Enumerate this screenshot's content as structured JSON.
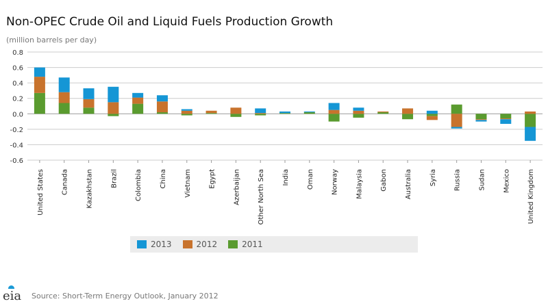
{
  "chart_data": {
    "type": "bar",
    "stacked": true,
    "title": "Non-OPEC Crude Oil and Liquid Fuels Production Growth",
    "subtitle": "(million barrels per day)",
    "ylim": [
      -0.6,
      0.8
    ],
    "yticks": [
      "0.8",
      "0.6",
      "0.4",
      "0.2",
      "0.0",
      "-0.2",
      "-0.4",
      "-0.6"
    ],
    "ytick_values": [
      0.8,
      0.6,
      0.4,
      0.2,
      0.0,
      -0.2,
      -0.4,
      -0.6
    ],
    "grid": true,
    "legend_position": "bottom",
    "categories": [
      "United States",
      "Canada",
      "Kazakhstan",
      "Brazil",
      "Colombia",
      "China",
      "Vietnam",
      "Egypt",
      "Azerbaijan",
      "Other North Sea",
      "India",
      "Oman",
      "Norway",
      "Malaysia",
      "Gabon",
      "Australia",
      "Syria",
      "Russia",
      "Sudan",
      "Mexico",
      "United Kingdom"
    ],
    "series": [
      {
        "name": "2011",
        "color": "#5a9b2f",
        "values": [
          0.27,
          0.14,
          0.08,
          -0.03,
          0.13,
          0.02,
          -0.02,
          0.01,
          -0.04,
          -0.02,
          0.01,
          0.02,
          -0.1,
          -0.05,
          0.02,
          -0.07,
          -0.03,
          0.12,
          -0.07,
          -0.06,
          -0.17
        ]
      },
      {
        "name": "2012",
        "color": "#c8732d",
        "values": [
          0.21,
          0.14,
          0.11,
          0.15,
          0.08,
          0.14,
          0.04,
          0.03,
          0.08,
          0.01,
          0.0,
          0.0,
          0.05,
          0.04,
          0.01,
          0.07,
          -0.05,
          -0.17,
          -0.01,
          -0.01,
          0.03
        ]
      },
      {
        "name": "2013",
        "color": "#1596d5",
        "values": [
          0.12,
          0.19,
          0.14,
          0.2,
          0.06,
          0.08,
          0.02,
          0.0,
          0.0,
          0.06,
          0.02,
          0.01,
          0.09,
          0.04,
          0.0,
          0.0,
          0.04,
          -0.02,
          -0.02,
          -0.06,
          -0.18
        ]
      }
    ],
    "legend_order": [
      "2013",
      "2012",
      "2011"
    ],
    "source": "Source: Short-Term Energy Outlook, January 2012"
  },
  "branding": {
    "logo_text": "eia"
  }
}
